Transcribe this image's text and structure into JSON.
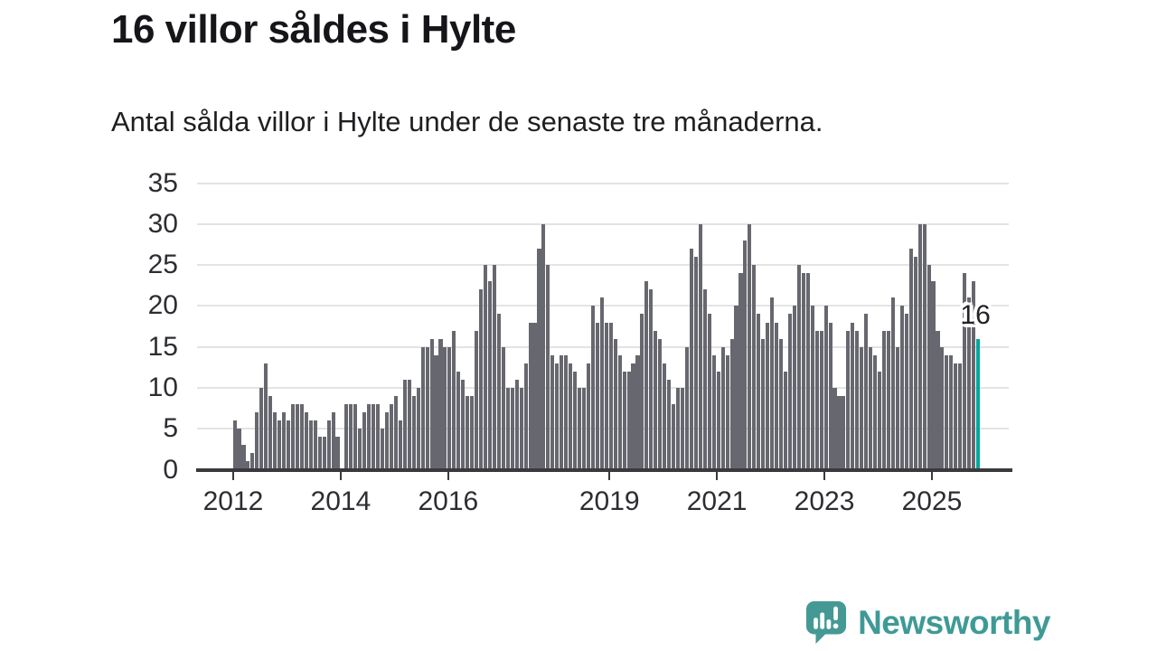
{
  "page": {
    "title": "16 villor såldes i Hylte",
    "subtitle": "Antal sålda villor i Hylte under de senaste tre månaderna."
  },
  "chart_data": {
    "type": "bar",
    "title": "16 villor såldes i Hylte",
    "subtitle": "Antal sålda villor i Hylte under de senaste tre månaderna.",
    "x_unit": "month",
    "x_start": "2012-01",
    "x_tick_years": [
      2012,
      2014,
      2016,
      2019,
      2021,
      2023,
      2025
    ],
    "ylim": [
      0,
      35
    ],
    "y_ticks": [
      0,
      5,
      10,
      15,
      20,
      25,
      30,
      35
    ],
    "grid": "horizontal",
    "legend": "none",
    "values": [
      6,
      5,
      3,
      1,
      2,
      7,
      10,
      13,
      9,
      7,
      6,
      7,
      6,
      8,
      8,
      8,
      7,
      6,
      6,
      4,
      4,
      6,
      7,
      4,
      0,
      8,
      8,
      8,
      5,
      7,
      8,
      8,
      8,
      5,
      7,
      8,
      9,
      6,
      11,
      11,
      9,
      10,
      15,
      15,
      16,
      14,
      16,
      15,
      15,
      17,
      12,
      11,
      9,
      9,
      17,
      22,
      25,
      23,
      25,
      19,
      15,
      10,
      10,
      11,
      10,
      13,
      18,
      18,
      27,
      30,
      25,
      14,
      13,
      14,
      14,
      13,
      12,
      10,
      10,
      13,
      20,
      18,
      21,
      18,
      18,
      16,
      14,
      12,
      12,
      13,
      14,
      19,
      23,
      22,
      17,
      16,
      13,
      11,
      8,
      10,
      10,
      15,
      27,
      26,
      30,
      22,
      19,
      14,
      12,
      15,
      14,
      16,
      20,
      24,
      28,
      30,
      25,
      19,
      16,
      18,
      21,
      18,
      16,
      12,
      19,
      20,
      25,
      24,
      24,
      20,
      17,
      17,
      20,
      18,
      10,
      9,
      9,
      17,
      18,
      17,
      15,
      19,
      15,
      14,
      12,
      17,
      17,
      21,
      15,
      20,
      19,
      27,
      26,
      30,
      30,
      25,
      23,
      17,
      15,
      14,
      14,
      13,
      13,
      24,
      21,
      23,
      16
    ],
    "highlight": {
      "index": 166,
      "value": 16,
      "label": "16"
    },
    "colors": {
      "bar": "#67676f",
      "highlight": "#00a79d",
      "grid": "#e3e3e3",
      "axis": "#3a3a3e",
      "text": "#2d2d32"
    }
  },
  "branding": {
    "name": "Newsworthy",
    "color": "#3f9a96",
    "icon": "bar-chart-speech-bubble-icon"
  }
}
